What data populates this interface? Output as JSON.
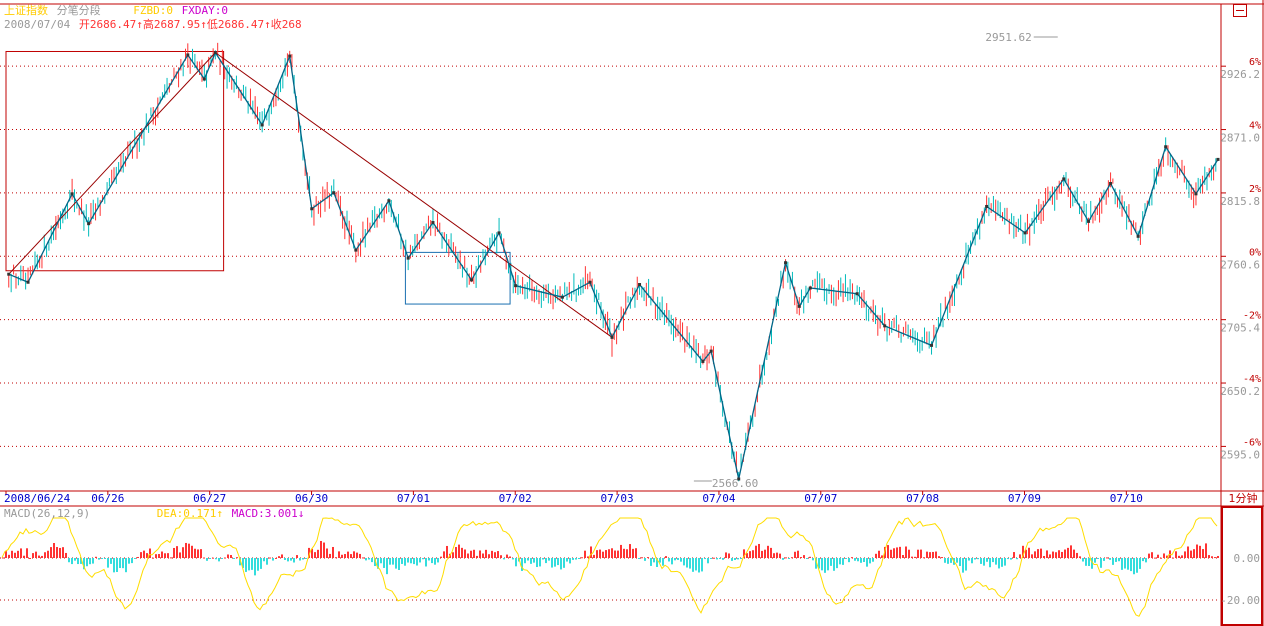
{
  "header": {
    "index_name": "上证指数",
    "mode": "分笔分段",
    "fzbd": "FZBD:0",
    "fxday": "FXDAY:0",
    "date": "2008/07/04",
    "ohlc": "开2686.47↑高2687.95↑低2686.47↑收268"
  },
  "colors": {
    "background": "#ffffff",
    "axis": "#c00000",
    "up_candle": "#ff3333",
    "down_candle": "#00bbbb",
    "zigzag": "#006688",
    "trend_line": "#990000",
    "dif_line": "#ffdd00",
    "dea_line": "#cc00cc",
    "macd_pos": "#ff3333",
    "macd_neg": "#33dddd",
    "title_yellow": "#ffcc00",
    "title_magenta": "#cc00cc",
    "label_gray": "#999999"
  },
  "period_label": "1分钟",
  "maximize_icon": "maximize-icon",
  "chart_data": [
    {
      "type": "candlestick",
      "title": "上证指数",
      "ylim": [
        2566.6,
        2951.62
      ],
      "y_ticks": [
        2595.0,
        2650.2,
        2705.4,
        2760.6,
        2815.8,
        2871.0,
        2926.2
      ],
      "pct_ticks": [
        {
          "value": 2926.2,
          "label": "6%"
        },
        {
          "value": 2871.0,
          "label": "4%"
        },
        {
          "value": 2815.8,
          "label": "2%"
        },
        {
          "value": 2760.6,
          "label": "0%"
        },
        {
          "value": 2705.4,
          "label": "-2%"
        },
        {
          "value": 2650.2,
          "label": "-4%"
        },
        {
          "value": 2595.0,
          "label": "-6%"
        }
      ],
      "x_labels": [
        "2008/06/24",
        "06/26",
        "06/27",
        "06/30",
        "07/01",
        "07/02",
        "07/03",
        "07/04",
        "07/07",
        "07/08",
        "07/09",
        "07/10"
      ],
      "grid": true,
      "annotations": [
        {
          "text": "2951.62",
          "x": 38.4,
          "y": 2951.62
        },
        {
          "text": "2566.60",
          "x": 24.9,
          "y": 2566.6
        }
      ],
      "x_max": 44,
      "zigzag": [
        [
          0.1,
          2745
        ],
        [
          0.8,
          2738
        ],
        [
          2.4,
          2815
        ],
        [
          3.0,
          2789
        ],
        [
          6.6,
          2936
        ],
        [
          7.2,
          2915
        ],
        [
          7.6,
          2938
        ],
        [
          9.3,
          2875
        ],
        [
          10.3,
          2935
        ],
        [
          11.1,
          2802
        ],
        [
          11.9,
          2816
        ],
        [
          12.7,
          2766
        ],
        [
          13.9,
          2809
        ],
        [
          14.6,
          2759
        ],
        [
          15.5,
          2790
        ],
        [
          16.9,
          2740
        ],
        [
          17.9,
          2781
        ],
        [
          18.5,
          2735
        ],
        [
          20.2,
          2725
        ],
        [
          21.2,
          2738
        ],
        [
          22.0,
          2690
        ],
        [
          23.0,
          2736
        ],
        [
          25.3,
          2669
        ],
        [
          25.6,
          2678
        ],
        [
          26.6,
          2566.6
        ],
        [
          28.3,
          2755
        ],
        [
          28.8,
          2717
        ],
        [
          29.2,
          2733
        ],
        [
          30.9,
          2728
        ],
        [
          31.9,
          2700
        ],
        [
          33.6,
          2683
        ],
        [
          35.6,
          2804
        ],
        [
          37.0,
          2781
        ],
        [
          38.4,
          2828
        ],
        [
          39.3,
          2791
        ],
        [
          40.1,
          2824
        ],
        [
          41.1,
          2778
        ],
        [
          42.1,
          2856
        ],
        [
          43.2,
          2815
        ],
        [
          44.0,
          2845
        ]
      ],
      "trend_lines": [
        {
          "from": [
            0.1,
            2745
          ],
          "to": [
            7.6,
            2938
          ]
        },
        {
          "from": [
            7.6,
            2938
          ],
          "to": [
            22.0,
            2690
          ]
        }
      ],
      "boxes": [
        {
          "x": [
            0.0,
            7.9
          ],
          "y": [
            2748,
            2939
          ]
        },
        {
          "x": [
            14.5,
            18.3
          ],
          "y": [
            2764,
            2719
          ]
        }
      ]
    },
    {
      "type": "macd",
      "title": "MACD(26,12,9)",
      "dea_label": "DEA:0.171↑",
      "macd_label": "MACD:3.001↓",
      "ylim": [
        -20,
        20
      ],
      "y_ticks": [
        0.0,
        -20.0
      ],
      "y_tick_labels": [
        "0.00",
        "-20.00"
      ]
    }
  ]
}
